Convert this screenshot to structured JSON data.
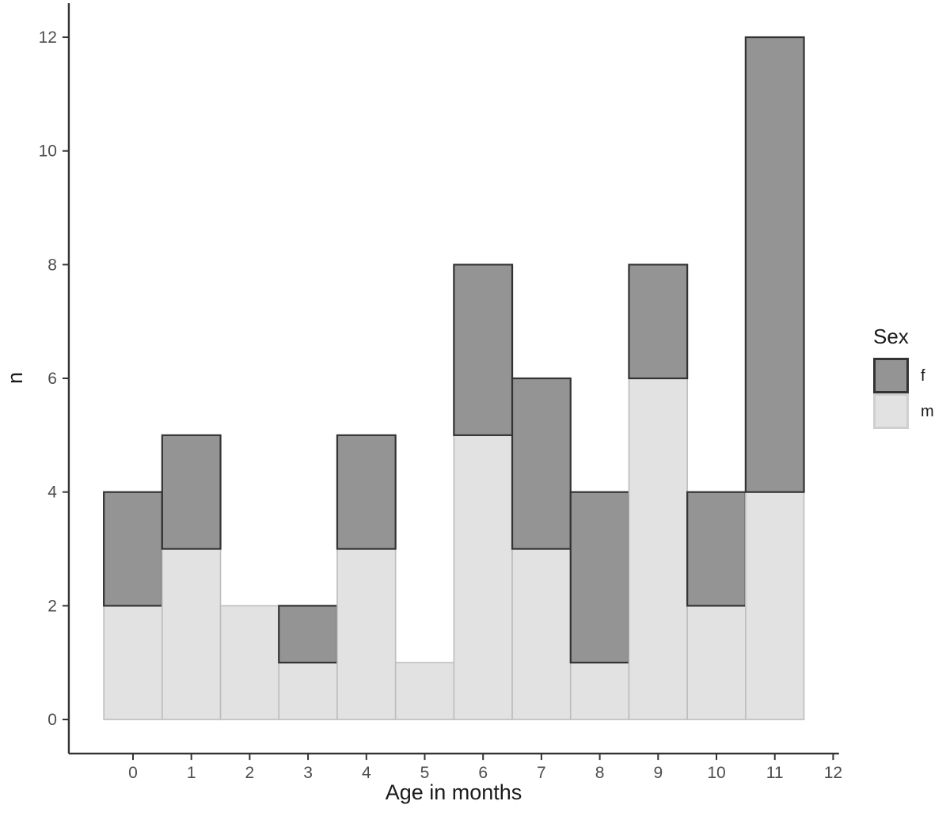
{
  "chart_data": {
    "type": "bar",
    "stacked": true,
    "title": "",
    "xlabel": "Age in months",
    "ylabel": "n",
    "categories": [
      0,
      1,
      2,
      3,
      4,
      5,
      6,
      7,
      8,
      9,
      10,
      11
    ],
    "series": [
      {
        "name": "m",
        "fill": "#e2e2e2",
        "stroke": "#bdbdbd",
        "values": [
          2,
          3,
          2,
          1,
          3,
          1,
          5,
          3,
          1,
          6,
          2,
          4
        ]
      },
      {
        "name": "f",
        "fill": "#949494",
        "stroke": "#333333",
        "values": [
          2,
          2,
          0,
          1,
          2,
          0,
          3,
          3,
          3,
          2,
          2,
          8
        ]
      }
    ],
    "totals": [
      4,
      5,
      2,
      2,
      5,
      1,
      8,
      6,
      4,
      8,
      4,
      12
    ],
    "bar_width": 1,
    "x_ticks": [
      "0",
      "1",
      "2",
      "3",
      "4",
      "5",
      "6",
      "7",
      "8",
      "9",
      "10",
      "11",
      "12"
    ],
    "y_ticks": [
      "0",
      "2",
      "4",
      "6",
      "8",
      "10",
      "12"
    ],
    "xlim": [
      -1.1,
      12.1
    ],
    "ylim": [
      -0.6,
      12.6
    ],
    "grid": false,
    "axis": {
      "line_color": "#333333",
      "tick_color": "#333333",
      "tick_label_color": "#4d4d4d",
      "title_color": "#1a1a1a"
    },
    "legend": {
      "title": "Sex",
      "position": "right",
      "entries": [
        {
          "label": "f",
          "fill": "#949494",
          "stroke": "#333333"
        },
        {
          "label": "m",
          "fill": "#e2e2e2",
          "stroke": "#cfcfcf"
        }
      ]
    }
  }
}
